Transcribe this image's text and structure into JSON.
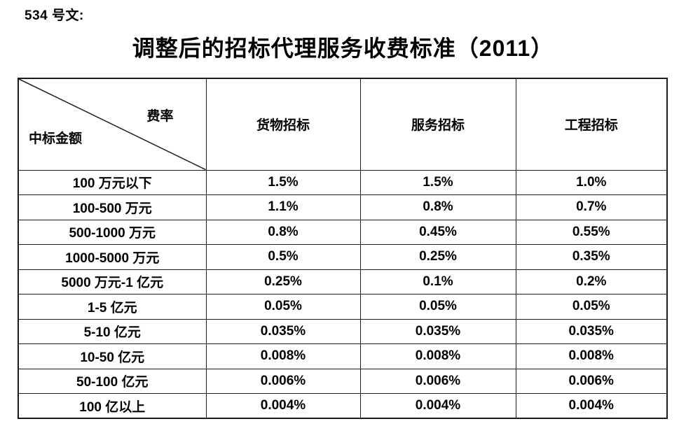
{
  "page": {
    "doc_ref": "534 号文:",
    "title": "调整后的招标代理服务收费标准（2011）"
  },
  "table": {
    "corner": {
      "top_right": "费率",
      "bottom_left": "中标金额"
    },
    "columns": [
      "货物招标",
      "服务招标",
      "工程招标"
    ],
    "rows": [
      {
        "label": "100 万元以下",
        "values": [
          "1.5%",
          "1.5%",
          "1.0%"
        ]
      },
      {
        "label": "100-500 万元",
        "values": [
          "1.1%",
          "0.8%",
          "0.7%"
        ]
      },
      {
        "label": "500-1000 万元",
        "values": [
          "0.8%",
          "0.45%",
          "0.55%"
        ]
      },
      {
        "label": "1000-5000 万元",
        "values": [
          "0.5%",
          "0.25%",
          "0.35%"
        ]
      },
      {
        "label": "5000 万元-1 亿元",
        "values": [
          "0.25%",
          "0.1%",
          "0.2%"
        ]
      },
      {
        "label": "1-5 亿元",
        "values": [
          "0.05%",
          "0.05%",
          "0.05%"
        ]
      },
      {
        "label": "5-10 亿元",
        "values": [
          "0.035%",
          "0.035%",
          "0.035%"
        ]
      },
      {
        "label": "10-50 亿元",
        "values": [
          "0.008%",
          "0.008%",
          "0.008%"
        ]
      },
      {
        "label": "50-100 亿元",
        "values": [
          "0.006%",
          "0.006%",
          "0.006%"
        ]
      },
      {
        "label": "100 亿以上",
        "values": [
          "0.004%",
          "0.004%",
          "0.004%"
        ]
      }
    ],
    "colors": {
      "border": "#1a1a1a",
      "text": "#000000",
      "background": "#ffffff"
    }
  }
}
